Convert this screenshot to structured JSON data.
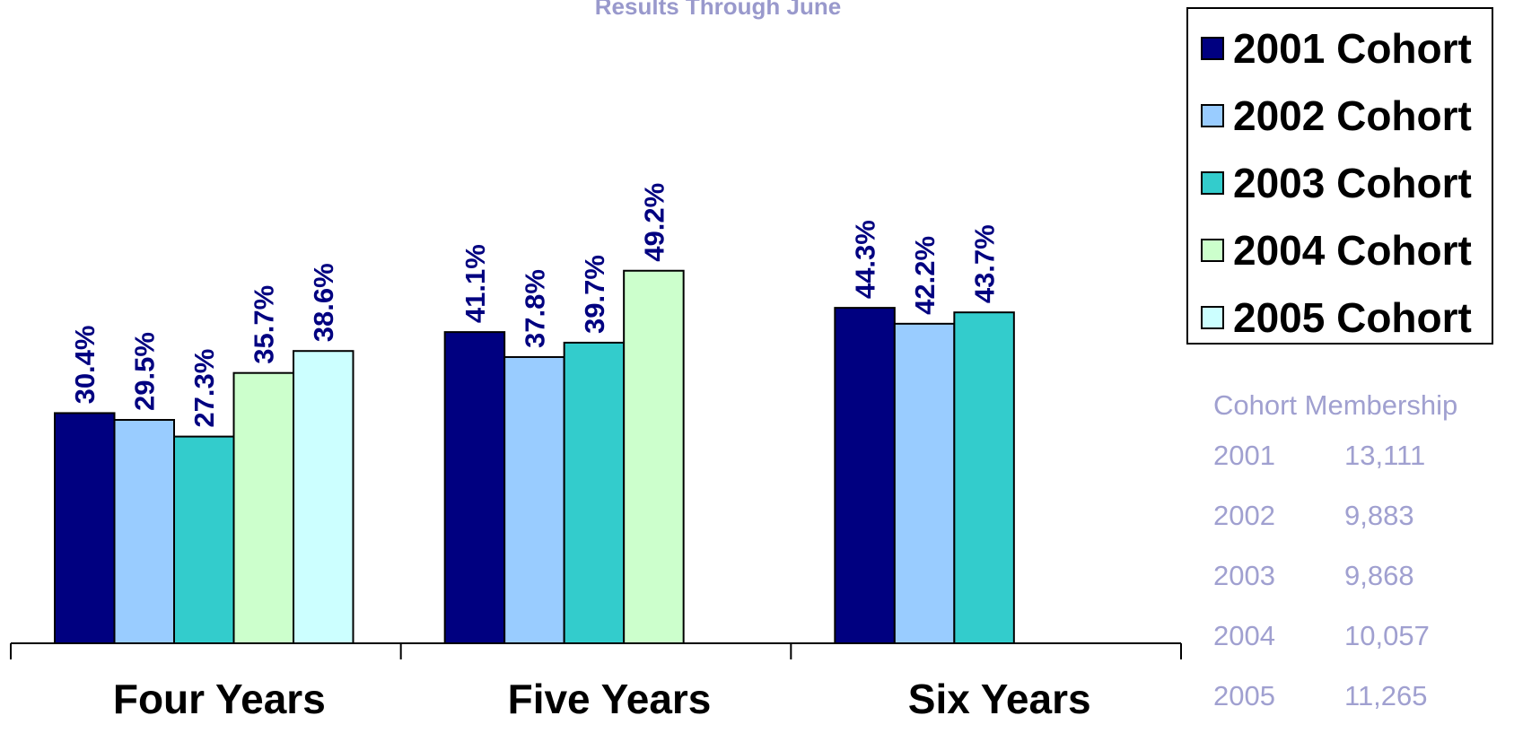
{
  "chart_data": {
    "type": "bar",
    "subtitle": "Results Through June",
    "categories": [
      "Four Years",
      "Five Years",
      "Six Years"
    ],
    "series": [
      {
        "name": "2001 Cohort",
        "color": "#000080",
        "values": [
          30.4,
          41.1,
          44.3
        ],
        "labels": [
          "30.4%",
          "41.1%",
          "44.3%"
        ]
      },
      {
        "name": "2002 Cohort",
        "color": "#99ccff",
        "values": [
          29.5,
          37.8,
          42.2
        ],
        "labels": [
          "29.5%",
          "37.8%",
          "42.2%"
        ]
      },
      {
        "name": "2003 Cohort",
        "color": "#33cccc",
        "values": [
          27.3,
          39.7,
          43.7
        ],
        "labels": [
          "27.3%",
          "39.7%",
          "43.7%"
        ]
      },
      {
        "name": "2004 Cohort",
        "color": "#ccffcc",
        "values": [
          35.7,
          49.2,
          null
        ],
        "labels": [
          "35.7%",
          "49.2%",
          null
        ]
      },
      {
        "name": "2005 Cohort",
        "color": "#ccffff",
        "values": [
          38.6,
          null,
          null
        ],
        "labels": [
          "38.6%",
          null,
          null
        ]
      }
    ],
    "ylim": [
      0,
      60
    ],
    "grid": false,
    "legend_position": "top-right",
    "data_label_color": "#000080"
  },
  "membership": {
    "title": "Cohort Membership",
    "rows": [
      {
        "year": "2001",
        "count": "13,111"
      },
      {
        "year": "2002",
        "count": "9,883"
      },
      {
        "year": "2003",
        "count": "9,868"
      },
      {
        "year": "2004",
        "count": "10,057"
      },
      {
        "year": "2005",
        "count": "11,265"
      }
    ]
  }
}
